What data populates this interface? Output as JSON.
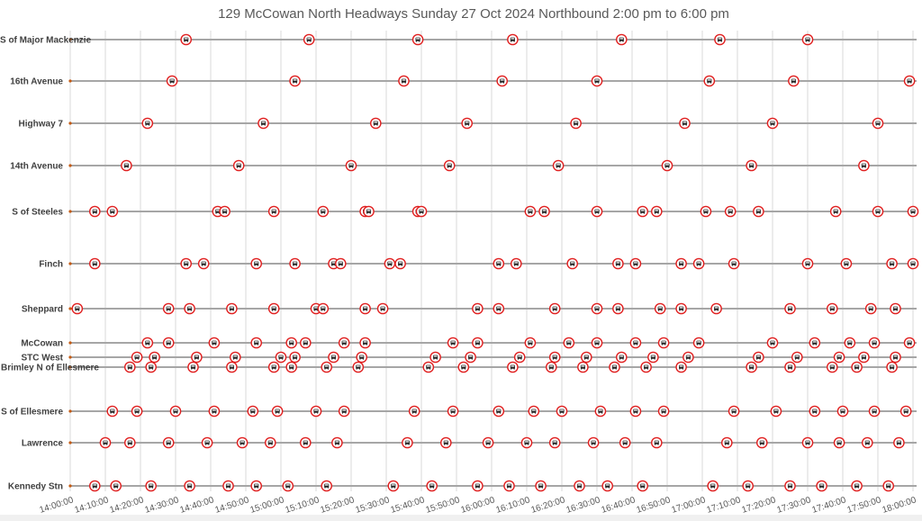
{
  "chart_data": {
    "type": "scatter",
    "title": "129 McCowan North Headways Sunday 27 Oct 2024 Northbound 2:00 pm to 6:00 pm",
    "xlabel": "",
    "ylabel": "",
    "xlim": [
      "14:00:00",
      "18:00:00"
    ],
    "x_ticks": [
      "14:00:00",
      "14:10:00",
      "14:20:00",
      "14:30:00",
      "14:40:00",
      "14:50:00",
      "15:00:00",
      "15:10:00",
      "15:20:00",
      "15:30:00",
      "15:40:00",
      "15:50:00",
      "16:00:00",
      "16:10:00",
      "16:20:00",
      "16:30:00",
      "16:40:00",
      "16:50:00",
      "17:00:00",
      "17:10:00",
      "17:20:00",
      "17:30:00",
      "17:40:00",
      "17:50:00",
      "18:00:00"
    ],
    "grid": "vertical",
    "marker_icon": "bus-icon",
    "colors": {
      "marker_ring": "#e02020",
      "row_line": "#a6a6a6",
      "grid": "#d9d9d9",
      "row_dot": "#c55a11",
      "title": "#595959"
    },
    "stops": [
      {
        "name": "S of Major Mackenzie",
        "times": [
          "14:33",
          "15:08",
          "15:39",
          "16:06",
          "16:37",
          "17:05",
          "17:30"
        ]
      },
      {
        "name": "16th Avenue",
        "times": [
          "14:29",
          "15:04",
          "15:35",
          "16:03",
          "16:30",
          "17:02",
          "17:26",
          "17:59"
        ]
      },
      {
        "name": "Highway 7",
        "times": [
          "14:22",
          "14:55",
          "15:27",
          "15:53",
          "16:24",
          "16:55",
          "17:20",
          "17:50"
        ]
      },
      {
        "name": "14th Avenue",
        "times": [
          "14:16",
          "14:48",
          "15:20",
          "15:48",
          "16:19",
          "16:50",
          "17:14",
          "17:46"
        ]
      },
      {
        "name": "S of Steeles",
        "times": [
          "14:07",
          "14:12",
          "14:42",
          "14:44",
          "14:58",
          "15:12",
          "15:24",
          "15:25",
          "15:39",
          "15:40",
          "16:11",
          "16:15",
          "16:30",
          "16:43",
          "16:47",
          "17:01",
          "17:08",
          "17:16",
          "17:38",
          "17:50",
          "18:00"
        ]
      },
      {
        "name": "Finch",
        "times": [
          "14:07",
          "14:33",
          "14:38",
          "14:53",
          "15:04",
          "15:15",
          "15:17",
          "15:31",
          "15:34",
          "16:02",
          "16:07",
          "16:23",
          "16:36",
          "16:41",
          "16:54",
          "16:59",
          "17:09",
          "17:30",
          "17:41",
          "17:54",
          "18:00"
        ]
      },
      {
        "name": "Sheppard",
        "times": [
          "14:02",
          "14:28",
          "14:34",
          "14:46",
          "14:58",
          "15:10",
          "15:12",
          "15:24",
          "15:29",
          "15:56",
          "16:02",
          "16:18",
          "16:30",
          "16:36",
          "16:48",
          "16:54",
          "17:04",
          "17:25",
          "17:37",
          "17:48",
          "17:55"
        ]
      },
      {
        "name": "McCowan",
        "times": [
          "14:22",
          "14:28",
          "14:41",
          "14:53",
          "15:03",
          "15:07",
          "15:18",
          "15:24",
          "15:49",
          "15:56",
          "16:11",
          "16:22",
          "16:30",
          "16:41",
          "16:49",
          "16:59",
          "17:20",
          "17:32",
          "17:42",
          "17:49",
          "17:59"
        ]
      },
      {
        "name": "STC West",
        "times": [
          "14:19",
          "14:24",
          "14:36",
          "14:47",
          "15:00",
          "15:04",
          "15:15",
          "15:23",
          "15:44",
          "15:54",
          "16:08",
          "16:18",
          "16:27",
          "16:37",
          "16:46",
          "16:56",
          "17:16",
          "17:27",
          "17:39",
          "17:46",
          "17:55"
        ]
      },
      {
        "name": "Brimley N of Ellesmere",
        "times": [
          "14:17",
          "14:23",
          "14:35",
          "14:46",
          "14:58",
          "15:03",
          "15:13",
          "15:22",
          "15:42",
          "15:52",
          "16:06",
          "16:17",
          "16:26",
          "16:35",
          "16:44",
          "16:54",
          "17:14",
          "17:25",
          "17:37",
          "17:44",
          "17:54"
        ]
      },
      {
        "name": "S of Ellesmere",
        "times": [
          "14:12",
          "14:19",
          "14:30",
          "14:41",
          "14:52",
          "14:59",
          "15:10",
          "15:18",
          "15:38",
          "15:49",
          "16:02",
          "16:12",
          "16:20",
          "16:31",
          "16:41",
          "16:49",
          "17:09",
          "17:21",
          "17:32",
          "17:40",
          "17:49",
          "17:58"
        ]
      },
      {
        "name": "Lawrence",
        "times": [
          "14:10",
          "14:17",
          "14:28",
          "14:39",
          "14:49",
          "14:57",
          "15:07",
          "15:16",
          "15:36",
          "15:47",
          "15:59",
          "16:10",
          "16:18",
          "16:29",
          "16:38",
          "16:47",
          "17:07",
          "17:17",
          "17:30",
          "17:39",
          "17:47",
          "17:56"
        ]
      },
      {
        "name": "Kennedy Stn",
        "times": [
          "14:07",
          "14:13",
          "14:23",
          "14:34",
          "14:45",
          "14:53",
          "15:02",
          "15:13",
          "15:32",
          "15:43",
          "15:56",
          "16:05",
          "16:14",
          "16:25",
          "16:33",
          "16:43",
          "17:03",
          "17:13",
          "17:25",
          "17:34",
          "17:44",
          "17:53"
        ]
      }
    ]
  }
}
